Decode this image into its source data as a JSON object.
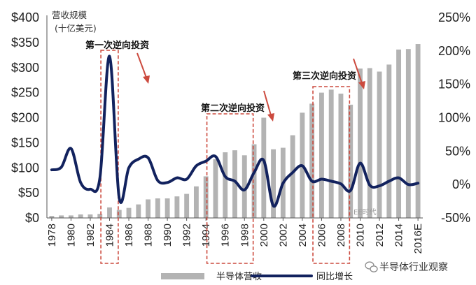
{
  "chart_data": {
    "type": "bar",
    "ylabel_left": [
      "营收规模",
      "(十亿美元)"
    ],
    "categories": [
      "1978",
      "1979",
      "1980",
      "1981",
      "1982",
      "1983",
      "1984",
      "1985",
      "1986",
      "1987",
      "1988",
      "1989",
      "1990",
      "1991",
      "1992",
      "1993",
      "1994",
      "1995",
      "1996",
      "1997",
      "1998",
      "1999",
      "2000",
      "2001",
      "2002",
      "2003",
      "2004",
      "2005",
      "2006",
      "2007",
      "2008",
      "2009",
      "2010",
      "2011",
      "2012",
      "2013",
      "2014",
      "2015",
      "2016E"
    ],
    "x_tick_labels": [
      "1978",
      "1980",
      "1982",
      "1984",
      "1986",
      "1988",
      "1990",
      "1992",
      "1994",
      "1996",
      "1998",
      "2000",
      "2002",
      "2004",
      "2006",
      "2008",
      "2010",
      "2012",
      "2014",
      "2016E"
    ],
    "y_left": {
      "ticks": [
        "$0",
        "$50",
        "$100",
        "$150",
        "$200",
        "$250",
        "$300",
        "$350",
        "$400"
      ],
      "range": [
        0,
        400
      ]
    },
    "y_right": {
      "ticks": [
        "-50%",
        "0%",
        "50%",
        "100%",
        "150%",
        "200%",
        "250%"
      ],
      "range": [
        -50,
        250
      ]
    },
    "series": [
      {
        "name": "半导体营收",
        "kind": "bar",
        "axis": "left",
        "color": "#b3b3b3",
        "values": [
          4,
          5,
          5,
          7,
          7,
          8,
          21,
          16,
          20,
          27,
          37,
          39,
          39,
          43,
          48,
          63,
          83,
          117,
          131,
          135,
          125,
          147,
          200,
          137,
          140,
          165,
          210,
          228,
          250,
          256,
          248,
          226,
          298,
          299,
          292,
          306,
          336,
          337,
          347
        ]
      },
      {
        "name": "同比增长",
        "kind": "line",
        "axis": "right",
        "color": "#12225e",
        "values": [
          22,
          26,
          54,
          3,
          -7,
          10,
          192,
          -20,
          25,
          38,
          40,
          6,
          3,
          10,
          8,
          28,
          35,
          42,
          12,
          5,
          -8,
          18,
          36,
          -32,
          2,
          18,
          28,
          5,
          8,
          5,
          1,
          -9,
          32,
          -1,
          -2,
          5,
          10,
          0,
          2
        ]
      }
    ],
    "annotations": [
      {
        "text": "第一次逆向投资",
        "year_range": [
          "1984",
          "1984"
        ]
      },
      {
        "text": "第二次逆向投资",
        "year_range": [
          "1995",
          "1998"
        ]
      },
      {
        "text": "第三次逆向投资",
        "year_range": [
          "2006",
          "2008"
        ]
      }
    ],
    "legend_position": "bottom",
    "grid": false
  },
  "watermark": "半导体行业观察",
  "faint_text": "EE时代"
}
